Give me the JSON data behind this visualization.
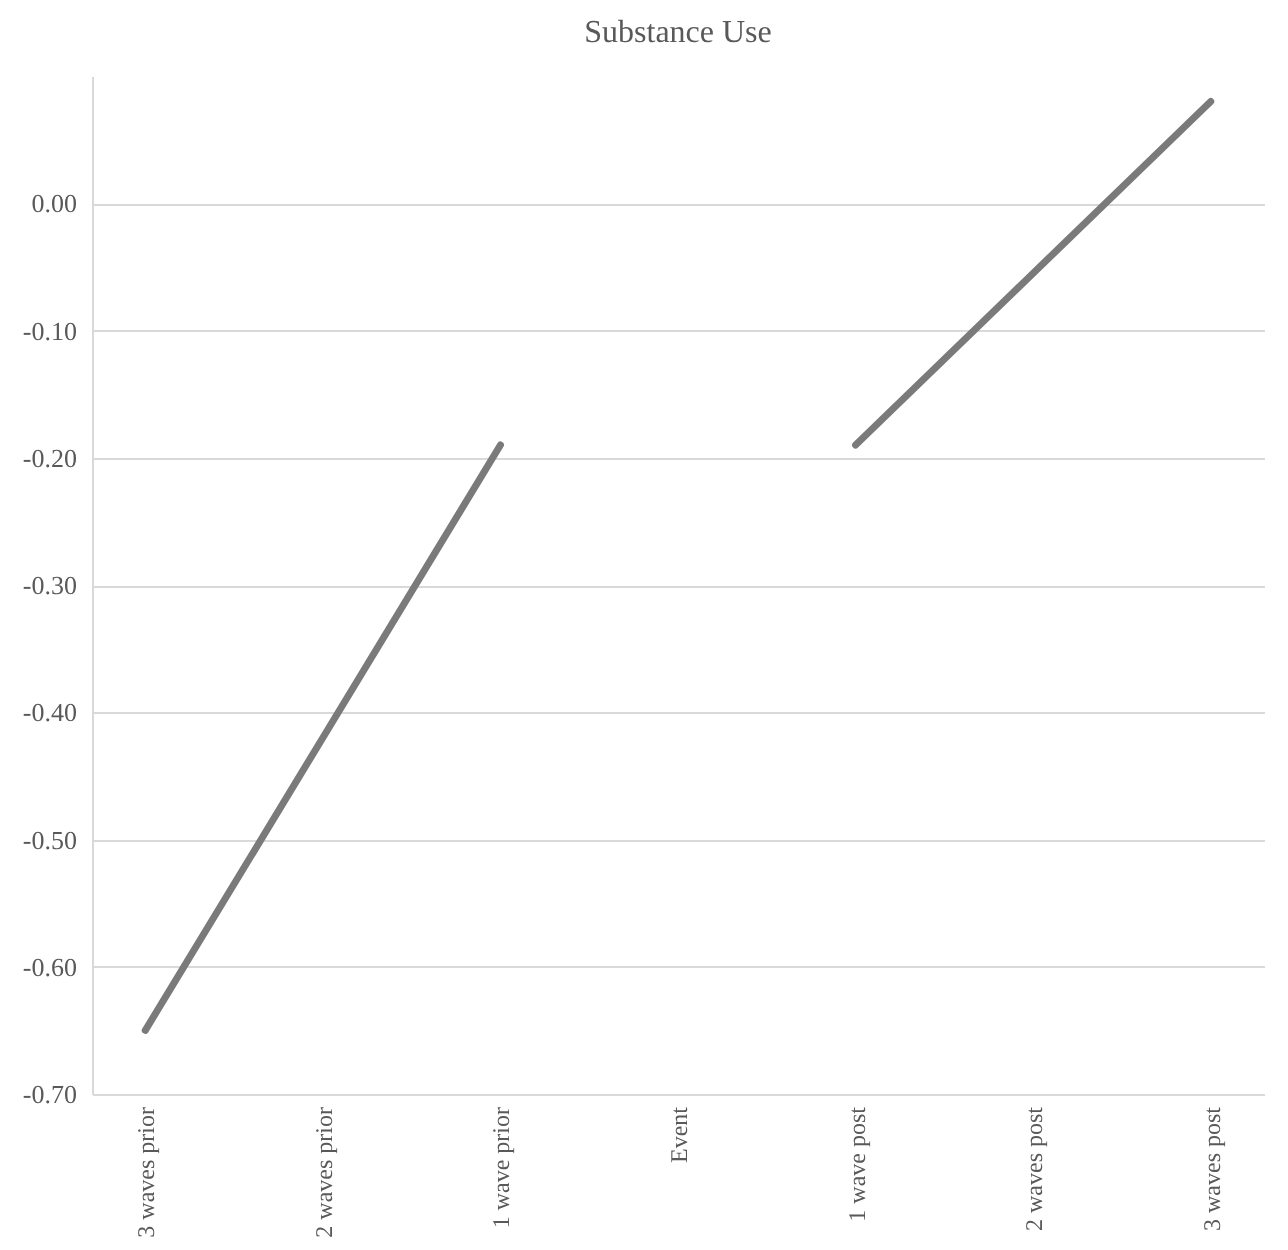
{
  "chart_data": {
    "type": "line",
    "title": "Substance Use",
    "categories": [
      "3 waves prior",
      "2 waves prior",
      "1 wave prior",
      "Event",
      "1 wave post",
      "2 waves post",
      "3 waves post"
    ],
    "series": [
      {
        "color": "#7a7a7a",
        "values": [
          -0.65,
          -0.42,
          -0.19,
          null,
          -0.19,
          -0.055,
          0.08
        ]
      }
    ],
    "ylim": [
      -0.7,
      0.1
    ],
    "yticks": [
      {
        "value": -0.7,
        "label": "-0.70"
      },
      {
        "value": -0.6,
        "label": "-0.60"
      },
      {
        "value": -0.5,
        "label": "-0.50"
      },
      {
        "value": -0.4,
        "label": "-0.40"
      },
      {
        "value": -0.3,
        "label": "-0.30"
      },
      {
        "value": -0.2,
        "label": "-0.20"
      },
      {
        "value": -0.1,
        "label": "-0.10"
      },
      {
        "value": 0.0,
        "label": "0.00"
      }
    ],
    "grid": "y",
    "marker": "none",
    "line_style": "solid"
  }
}
